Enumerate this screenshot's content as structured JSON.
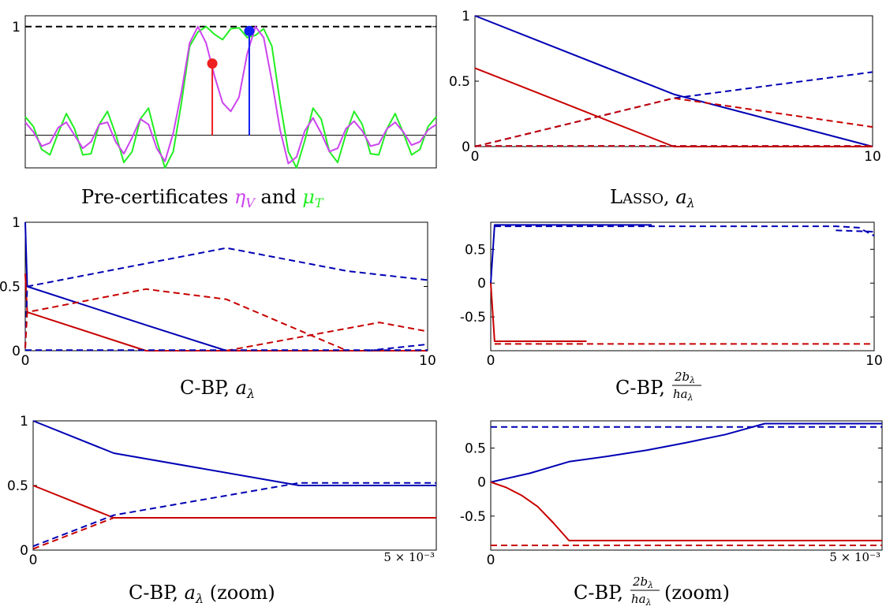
{
  "colors": {
    "blue": "#0000b4",
    "red": "#c80000",
    "green": "#22ee22",
    "magenta": "#cc44ee",
    "dot_red": "#ee2020",
    "dot_blue": "#1020ee",
    "black": "#000000"
  },
  "panels": [
    {
      "id": "precert",
      "caption": {
        "prefix": "Pre-certificates ",
        "eta": "η",
        "eta_sub": "V",
        "and": " and ",
        "mu": "μ",
        "mu_sub": "T"
      }
    },
    {
      "id": "lasso",
      "caption": {
        "L": "L",
        "rest": "ASSO",
        "comma": ", ",
        "a": "a",
        "sub": "λ"
      }
    },
    {
      "id": "cbp_a",
      "caption": {
        "text": "C-BP, ",
        "a": "a",
        "sub": "λ"
      }
    },
    {
      "id": "cbp_b",
      "caption": {
        "text": "C-BP, ",
        "num": "2b",
        "num_sub": "λ",
        "den": "ha",
        "den_sub": "λ"
      }
    },
    {
      "id": "cbp_a_zoom",
      "caption": {
        "text": "C-BP, ",
        "a": "a",
        "sub": "λ",
        "zoom": " (zoom)"
      }
    },
    {
      "id": "cbp_b_zoom",
      "caption": {
        "text": "C-BP, ",
        "num": "2b",
        "num_sub": "λ",
        "den": "ha",
        "den_sub": "λ",
        "zoom": " (zoom)"
      }
    }
  ],
  "chart_data": [
    {
      "type": "line",
      "id": "precert",
      "xlim": [
        0,
        1
      ],
      "ylim": [
        -0.3,
        1.1
      ],
      "yticks": [
        1
      ],
      "ytick_labels": [
        "1"
      ],
      "reference_lines": [
        {
          "y": 1,
          "style": "dashed",
          "color": "black"
        },
        {
          "y": 0,
          "style": "solid",
          "color": "black"
        }
      ],
      "series": [
        {
          "color": "green",
          "style": "solid",
          "x": [
            0,
            0.02,
            0.04,
            0.06,
            0.08,
            0.1,
            0.12,
            0.14,
            0.16,
            0.18,
            0.2,
            0.22,
            0.24,
            0.26,
            0.28,
            0.3,
            0.32,
            0.34,
            0.36,
            0.38,
            0.4,
            0.42,
            0.44,
            0.46,
            0.48,
            0.5,
            0.52,
            0.54,
            0.56,
            0.58,
            0.6,
            0.62,
            0.64,
            0.66,
            0.68,
            0.7,
            0.72,
            0.74,
            0.76,
            0.78,
            0.8,
            0.82,
            0.84,
            0.86,
            0.88,
            0.9,
            0.92,
            0.94,
            0.96,
            0.98,
            1
          ],
          "y": [
            0.17,
            0.08,
            -0.13,
            -0.18,
            0.02,
            0.2,
            0.06,
            -0.18,
            -0.17,
            0.1,
            0.22,
            0.01,
            -0.25,
            -0.15,
            0.15,
            0.25,
            -0.05,
            -0.3,
            -0.15,
            0.3,
            0.82,
            0.95,
            1.0,
            0.93,
            0.88,
            0.98,
            0.99,
            0.9,
            0.92,
            0.98,
            0.82,
            0.3,
            -0.15,
            -0.3,
            -0.05,
            0.25,
            0.15,
            -0.15,
            -0.25,
            0.01,
            0.22,
            0.1,
            -0.17,
            -0.18,
            0.06,
            0.2,
            0.02,
            -0.18,
            -0.13,
            0.08,
            0.17
          ]
        },
        {
          "color": "magenta",
          "style": "solid",
          "x": [
            0,
            0.02,
            0.04,
            0.06,
            0.08,
            0.1,
            0.12,
            0.14,
            0.16,
            0.18,
            0.2,
            0.22,
            0.24,
            0.26,
            0.28,
            0.3,
            0.32,
            0.34,
            0.36,
            0.38,
            0.4,
            0.42,
            0.44,
            0.46,
            0.48,
            0.5,
            0.52,
            0.54,
            0.56,
            0.58,
            0.6,
            0.62,
            0.64,
            0.66,
            0.68,
            0.7,
            0.72,
            0.74,
            0.76,
            0.78,
            0.8,
            0.82,
            0.84,
            0.86,
            0.88,
            0.9,
            0.92,
            0.94,
            0.96,
            0.98,
            1
          ],
          "y": [
            0.12,
            0.03,
            -0.1,
            -0.07,
            0.07,
            0.12,
            0.0,
            -0.12,
            -0.06,
            0.1,
            0.12,
            -0.06,
            -0.17,
            -0.02,
            0.15,
            0.1,
            -0.12,
            -0.24,
            0.02,
            0.4,
            0.85,
            1.0,
            0.85,
            0.55,
            0.3,
            0.22,
            0.35,
            0.75,
            1.0,
            0.9,
            0.5,
            0.05,
            -0.26,
            -0.2,
            0.04,
            0.16,
            0.02,
            -0.15,
            -0.12,
            0.06,
            0.13,
            0.04,
            -0.1,
            -0.08,
            0.06,
            0.12,
            0.03,
            -0.09,
            -0.06,
            0.05,
            0.1
          ]
        }
      ],
      "stems": [
        {
          "x": 0.455,
          "y": 0.66,
          "color": "dot_red"
        },
        {
          "x": 0.545,
          "y": 0.96,
          "color": "dot_blue"
        }
      ]
    },
    {
      "type": "line",
      "id": "lasso",
      "xlim": [
        0,
        10
      ],
      "ylim": [
        0,
        1
      ],
      "xticks": [
        0,
        10
      ],
      "yticks": [
        0,
        0.5,
        1
      ],
      "ytick_labels": [
        "0",
        "0.5",
        "1"
      ],
      "series": [
        {
          "color": "blue",
          "style": "solid",
          "x": [
            0,
            5,
            10
          ],
          "y": [
            1,
            0.4,
            0
          ]
        },
        {
          "color": "red",
          "style": "solid",
          "x": [
            0,
            5,
            10
          ],
          "y": [
            0.6,
            0,
            0
          ]
        },
        {
          "color": "blue",
          "style": "dashed",
          "x": [
            0,
            5,
            10
          ],
          "y": [
            0,
            0.37,
            0.57
          ]
        },
        {
          "color": "red",
          "style": "dashed",
          "x": [
            0,
            5,
            10
          ],
          "y": [
            0,
            0.37,
            0.15
          ]
        },
        {
          "color": "blue",
          "style": "dashed",
          "x": [
            0,
            10
          ],
          "y": [
            0.005,
            0.005
          ]
        },
        {
          "color": "red",
          "style": "dashed",
          "x": [
            0,
            10
          ],
          "y": [
            0.005,
            0.005
          ]
        }
      ]
    },
    {
      "type": "line",
      "id": "cbp_a",
      "xlim": [
        0,
        10
      ],
      "ylim": [
        0,
        1
      ],
      "xticks": [
        0,
        10
      ],
      "yticks": [
        0,
        0.5,
        1
      ],
      "ytick_labels": [
        "0",
        "0.5",
        "1"
      ],
      "series": [
        {
          "color": "blue",
          "style": "solid",
          "x": [
            0,
            0.05,
            3,
            5,
            10
          ],
          "y": [
            1,
            0.5,
            0.2,
            0,
            0
          ]
        },
        {
          "color": "red",
          "style": "solid",
          "x": [
            0,
            0.05,
            3,
            10
          ],
          "y": [
            0.6,
            0.3,
            0,
            0
          ]
        },
        {
          "color": "blue",
          "style": "dashed",
          "x": [
            0,
            0.05,
            5,
            8,
            10
          ],
          "y": [
            0.02,
            0.5,
            0.8,
            0.62,
            0.55
          ]
        },
        {
          "color": "red",
          "style": "dashed",
          "x": [
            0,
            0.05,
            3,
            5,
            8,
            10
          ],
          "y": [
            0.02,
            0.3,
            0.48,
            0.4,
            0.0,
            0.0
          ]
        },
        {
          "color": "red",
          "style": "dashed",
          "x": [
            5,
            8.8,
            10
          ],
          "y": [
            0,
            0.22,
            0.15
          ]
        },
        {
          "color": "blue",
          "style": "dashed",
          "x": [
            8.5,
            10
          ],
          "y": [
            0,
            0.05
          ]
        },
        {
          "color": "blue",
          "style": "dashed",
          "x": [
            0,
            10
          ],
          "y": [
            0.005,
            0.005
          ]
        }
      ]
    },
    {
      "type": "line",
      "id": "cbp_b",
      "xlim": [
        0,
        10
      ],
      "ylim": [
        -1,
        0.9
      ],
      "xticks": [
        0,
        10
      ],
      "yticks": [
        0.5,
        0,
        -0.5
      ],
      "ytick_labels": [
        "0.5",
        "0",
        "-0.5"
      ],
      "series": [
        {
          "color": "blue",
          "style": "solid",
          "x": [
            0,
            0.1,
            4.2
          ],
          "y": [
            0,
            0.86,
            0.86
          ]
        },
        {
          "color": "blue",
          "style": "dashed",
          "x": [
            0.1,
            9,
            9.6,
            10
          ],
          "y": [
            0.84,
            0.84,
            0.82,
            0.7
          ]
        },
        {
          "color": "red",
          "style": "solid",
          "x": [
            0,
            0.1,
            2.5
          ],
          "y": [
            0,
            -0.86,
            -0.86
          ]
        },
        {
          "color": "red",
          "style": "dashed",
          "x": [
            0.1,
            10
          ],
          "y": [
            -0.9,
            -0.9
          ]
        },
        {
          "color": "blue",
          "style": "dashed",
          "x": [
            9,
            10
          ],
          "y": [
            0.78,
            0.76
          ]
        }
      ]
    },
    {
      "type": "line",
      "id": "cbp_a_zoom",
      "xlim": [
        0,
        0.005
      ],
      "ylim": [
        0,
        1
      ],
      "xticks": [
        0
      ],
      "x_exponent_label": "5 × 10⁻³",
      "yticks": [
        0,
        0.5,
        1
      ],
      "ytick_labels": [
        "0",
        "0.5",
        "1"
      ],
      "series": [
        {
          "color": "blue",
          "style": "solid",
          "x": [
            0,
            0.001,
            0.0033,
            0.005
          ],
          "y": [
            1,
            0.75,
            0.5,
            0.5
          ]
        },
        {
          "color": "red",
          "style": "solid",
          "x": [
            0,
            0.001,
            0.005
          ],
          "y": [
            0.5,
            0.25,
            0.25
          ]
        },
        {
          "color": "blue",
          "style": "dashed",
          "x": [
            0,
            0.001,
            0.0033,
            0.005
          ],
          "y": [
            0.03,
            0.27,
            0.52,
            0.52
          ]
        },
        {
          "color": "red",
          "style": "dashed",
          "x": [
            0,
            0.001,
            0.005
          ],
          "y": [
            0.01,
            0.25,
            0.25
          ]
        }
      ]
    },
    {
      "type": "line",
      "id": "cbp_b_zoom",
      "xlim": [
        0,
        0.005
      ],
      "ylim": [
        -1,
        0.9
      ],
      "xticks": [
        0
      ],
      "x_exponent_label": "5 × 10⁻³",
      "yticks": [
        0.5,
        0,
        -0.5
      ],
      "ytick_labels": [
        "0.5",
        "0",
        "-0.5"
      ],
      "series": [
        {
          "color": "blue",
          "style": "solid",
          "x": [
            0,
            0.0005,
            0.001,
            0.0015,
            0.002,
            0.0025,
            0.003,
            0.0035,
            0.005
          ],
          "y": [
            0,
            0.13,
            0.3,
            0.38,
            0.47,
            0.58,
            0.7,
            0.86,
            0.86
          ]
        },
        {
          "color": "blue",
          "style": "dashed",
          "x": [
            0,
            0.005
          ],
          "y": [
            0.81,
            0.81
          ]
        },
        {
          "color": "red",
          "style": "solid",
          "x": [
            0,
            0.0002,
            0.0004,
            0.0006,
            0.0008,
            0.001,
            0.005
          ],
          "y": [
            0,
            -0.08,
            -0.2,
            -0.36,
            -0.6,
            -0.86,
            -0.86
          ]
        },
        {
          "color": "red",
          "style": "dashed",
          "x": [
            0,
            0.005
          ],
          "y": [
            -0.93,
            -0.93
          ]
        }
      ]
    }
  ]
}
